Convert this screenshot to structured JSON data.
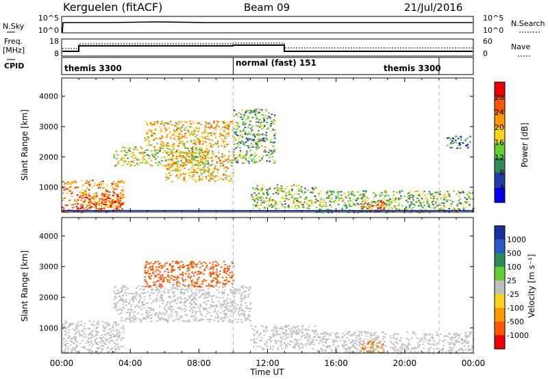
{
  "header": {
    "title": "Kerguelen (fitACF)",
    "beam": "Beam 09",
    "date": "21/Jul/2016"
  },
  "nsky_panel": {
    "label": "N.Sky",
    "right_label": "N.Search",
    "left_ticks": [
      "10^5",
      "10^0"
    ],
    "right_ticks": [
      "10^5",
      "10^0"
    ]
  },
  "freq_panel": {
    "label_line1": "Freq.",
    "label_line2": "[MHz]",
    "left_ticks": [
      "18",
      "8"
    ],
    "right_ticks": [
      "60",
      "0"
    ],
    "right_label": "Nave",
    "cpid_label": "CPID"
  },
  "cpid": [
    {
      "name": "themis 3300",
      "start_hour": 0,
      "end_hour": 10
    },
    {
      "name": "normal (fast) 151",
      "start_hour": 10,
      "end_hour": 22
    },
    {
      "name": "themis 3300",
      "start_hour": 22,
      "end_hour": 24
    }
  ],
  "colors": {
    "power": [
      "#0000ee",
      "#1f3fa6",
      "#2e8b57",
      "#66cc33",
      "#ffd21f",
      "#ff9900",
      "#ff5500",
      "#ee0000"
    ],
    "velocity_pos": [
      "#1a2f9e",
      "#2b58c8",
      "#2e8b57",
      "#66cc33"
    ],
    "velocity_gs": "#c0c0c0",
    "velocity_neg": [
      "#ffd21f",
      "#ff9900",
      "#ff5500",
      "#ee0000"
    ]
  },
  "chart_data": [
    {
      "type": "heatmap",
      "name": "power",
      "ylabel": "Slant Range [km]",
      "yticks": [
        "1000",
        "2000",
        "3000",
        "4000"
      ],
      "colorbar_label": "Power [dB]",
      "colorbar_ticks": [
        "4",
        "8",
        "12",
        "16",
        "20",
        "24",
        "28"
      ],
      "colorbar_range": [
        0,
        32
      ],
      "x_range_hours": [
        0,
        24
      ],
      "y_range_km": [
        180,
        4600
      ],
      "echo_regions": [
        {
          "t0": 0,
          "t1": 3.6,
          "r0": 180,
          "r1": 1250,
          "power": 24
        },
        {
          "t0": 1,
          "t1": 3.6,
          "r0": 300,
          "r1": 800,
          "power": 26
        },
        {
          "t0": 3.0,
          "t1": 8.6,
          "r0": 1700,
          "r1": 2350,
          "power": 16
        },
        {
          "t0": 6.0,
          "t1": 10.0,
          "r0": 1200,
          "r1": 2200,
          "power": 20
        },
        {
          "t0": 4.8,
          "t1": 10.0,
          "r0": 2350,
          "r1": 3200,
          "power": 20
        },
        {
          "t0": 10.0,
          "t1": 12.4,
          "r0": 1800,
          "r1": 3600,
          "power": 12
        },
        {
          "t0": 11.0,
          "t1": 14.8,
          "r0": 300,
          "r1": 1100,
          "power": 14
        },
        {
          "t0": 14.8,
          "t1": 24,
          "r0": 180,
          "r1": 900,
          "power": 14
        },
        {
          "t0": 17.4,
          "t1": 18.8,
          "r0": 200,
          "r1": 600,
          "power": 26
        },
        {
          "t0": 22.4,
          "t1": 23.8,
          "r0": 2300,
          "r1": 2700,
          "power": 8
        }
      ]
    },
    {
      "type": "heatmap",
      "name": "velocity",
      "ylabel": "Slant Range [km]",
      "yticks": [
        "1000",
        "2000",
        "3000",
        "4000"
      ],
      "xticks": [
        "00:00",
        "04:00",
        "08:00",
        "12:00",
        "16:00",
        "20:00",
        "00:00"
      ],
      "xlabel": "Time UT",
      "colorbar_label": "Velocity [m s⁻¹]",
      "colorbar_ticks": [
        "1000",
        "500",
        "100",
        "25",
        "-25",
        "-100",
        "-500",
        "-1000"
      ],
      "x_range_hours": [
        0,
        24
      ],
      "y_range_km": [
        180,
        4600
      ],
      "echo_regions": [
        {
          "t0": 0,
          "t1": 3.6,
          "r0": 180,
          "r1": 1250,
          "velocity": 0
        },
        {
          "t0": 3.0,
          "t1": 11.0,
          "r0": 1200,
          "r1": 2400,
          "velocity": 0
        },
        {
          "t0": 4.8,
          "t1": 10.0,
          "r0": 2350,
          "r1": 3200,
          "velocity": -300
        },
        {
          "t0": 11.0,
          "t1": 14.8,
          "r0": 300,
          "r1": 1100,
          "velocity": 0
        },
        {
          "t0": 14.8,
          "t1": 24,
          "r0": 180,
          "r1": 900,
          "velocity": 0
        },
        {
          "t0": 17.4,
          "t1": 18.8,
          "r0": 200,
          "r1": 600,
          "velocity": -100
        }
      ]
    }
  ]
}
